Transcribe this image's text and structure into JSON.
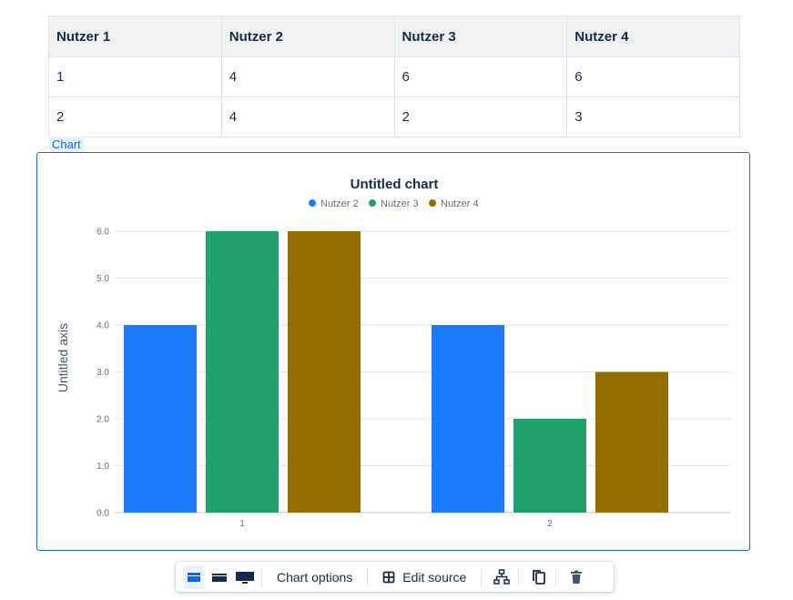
{
  "table": {
    "headers": [
      "Nutzer 1",
      "Nutzer 2",
      "Nutzer 3",
      "Nutzer 4"
    ],
    "rows": [
      [
        "1",
        "4",
        "6",
        "6"
      ],
      [
        "2",
        "4",
        "2",
        "3"
      ]
    ]
  },
  "chart_tag": "Chart",
  "chart_data": {
    "type": "bar",
    "title": "Untitled chart",
    "xlabel": "",
    "ylabel": "Untitled axis",
    "categories": [
      "1",
      "2"
    ],
    "series": [
      {
        "name": "Nutzer 2",
        "values": [
          4,
          4
        ],
        "color": "#1d7afc"
      },
      {
        "name": "Nutzer 3",
        "values": [
          6,
          2
        ],
        "color": "#22a06b"
      },
      {
        "name": "Nutzer 4",
        "values": [
          6,
          3
        ],
        "color": "#946f00"
      }
    ],
    "ylim": [
      0,
      6
    ],
    "yticks": [
      "0.0",
      "1.0",
      "2.0",
      "3.0",
      "4.0",
      "5.0",
      "6.0"
    ],
    "grid": true,
    "legend": "top-center"
  },
  "toolbar": {
    "layout_icons": [
      "layout-center-icon",
      "layout-wide-icon",
      "layout-full-width-icon"
    ],
    "chart_options_label": "Chart options",
    "edit_source_label": "Edit source",
    "icons": [
      "hierarchy-icon",
      "copy-icon",
      "delete-icon"
    ]
  }
}
